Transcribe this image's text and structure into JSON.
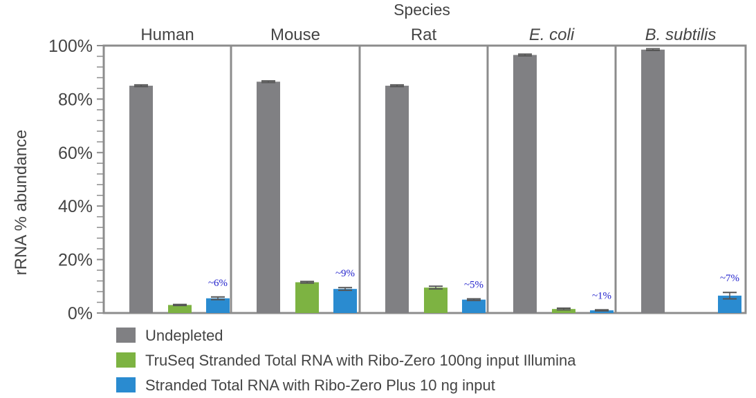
{
  "chart_data": {
    "type": "bar",
    "title": "Species",
    "ylabel": "rRNA % abundance",
    "xlabel": "",
    "ylim": [
      0,
      100
    ],
    "y_ticks": [
      0,
      20,
      40,
      60,
      80,
      100
    ],
    "y_tick_labels": [
      "0%",
      "20%",
      "40%",
      "60%",
      "80%",
      "100%"
    ],
    "y_minor_step": 4,
    "categories": [
      "Human",
      "Mouse",
      "Rat",
      "E. coli",
      "B. subtilis"
    ],
    "italic_categories": [
      "E. coli",
      "B. subtilis"
    ],
    "series": [
      {
        "name": "Undepleted",
        "color": "#808083",
        "values": [
          85,
          86.5,
          85,
          96.5,
          98.5
        ],
        "errors": [
          0.3,
          0.3,
          0.3,
          0.3,
          0.3
        ]
      },
      {
        "name": "TruSeq Stranded Total RNA with Ribo-Zero 100ng input Illumina",
        "color": "#7db342",
        "values": [
          3,
          11.5,
          9.5,
          1.5,
          null
        ],
        "errors": [
          0.2,
          0.3,
          0.5,
          0.3,
          null
        ]
      },
      {
        "name": "Stranded Total RNA with Ribo-Zero Plus 10 ng input",
        "color": "#2a8bd0",
        "values": [
          5.5,
          9,
          5,
          1,
          6.5
        ],
        "errors": [
          0.5,
          0.5,
          0.3,
          0.2,
          1.2
        ]
      }
    ],
    "annotations": [
      "~6%",
      "~9%",
      "~5%",
      "~1%",
      "~7%"
    ],
    "annotation_color": "#2222cc",
    "error_bar_color": "#555555",
    "frame_color": "#8c8c8c",
    "text_color": "#444444",
    "legend_position": "bottom-left",
    "grid": false
  }
}
